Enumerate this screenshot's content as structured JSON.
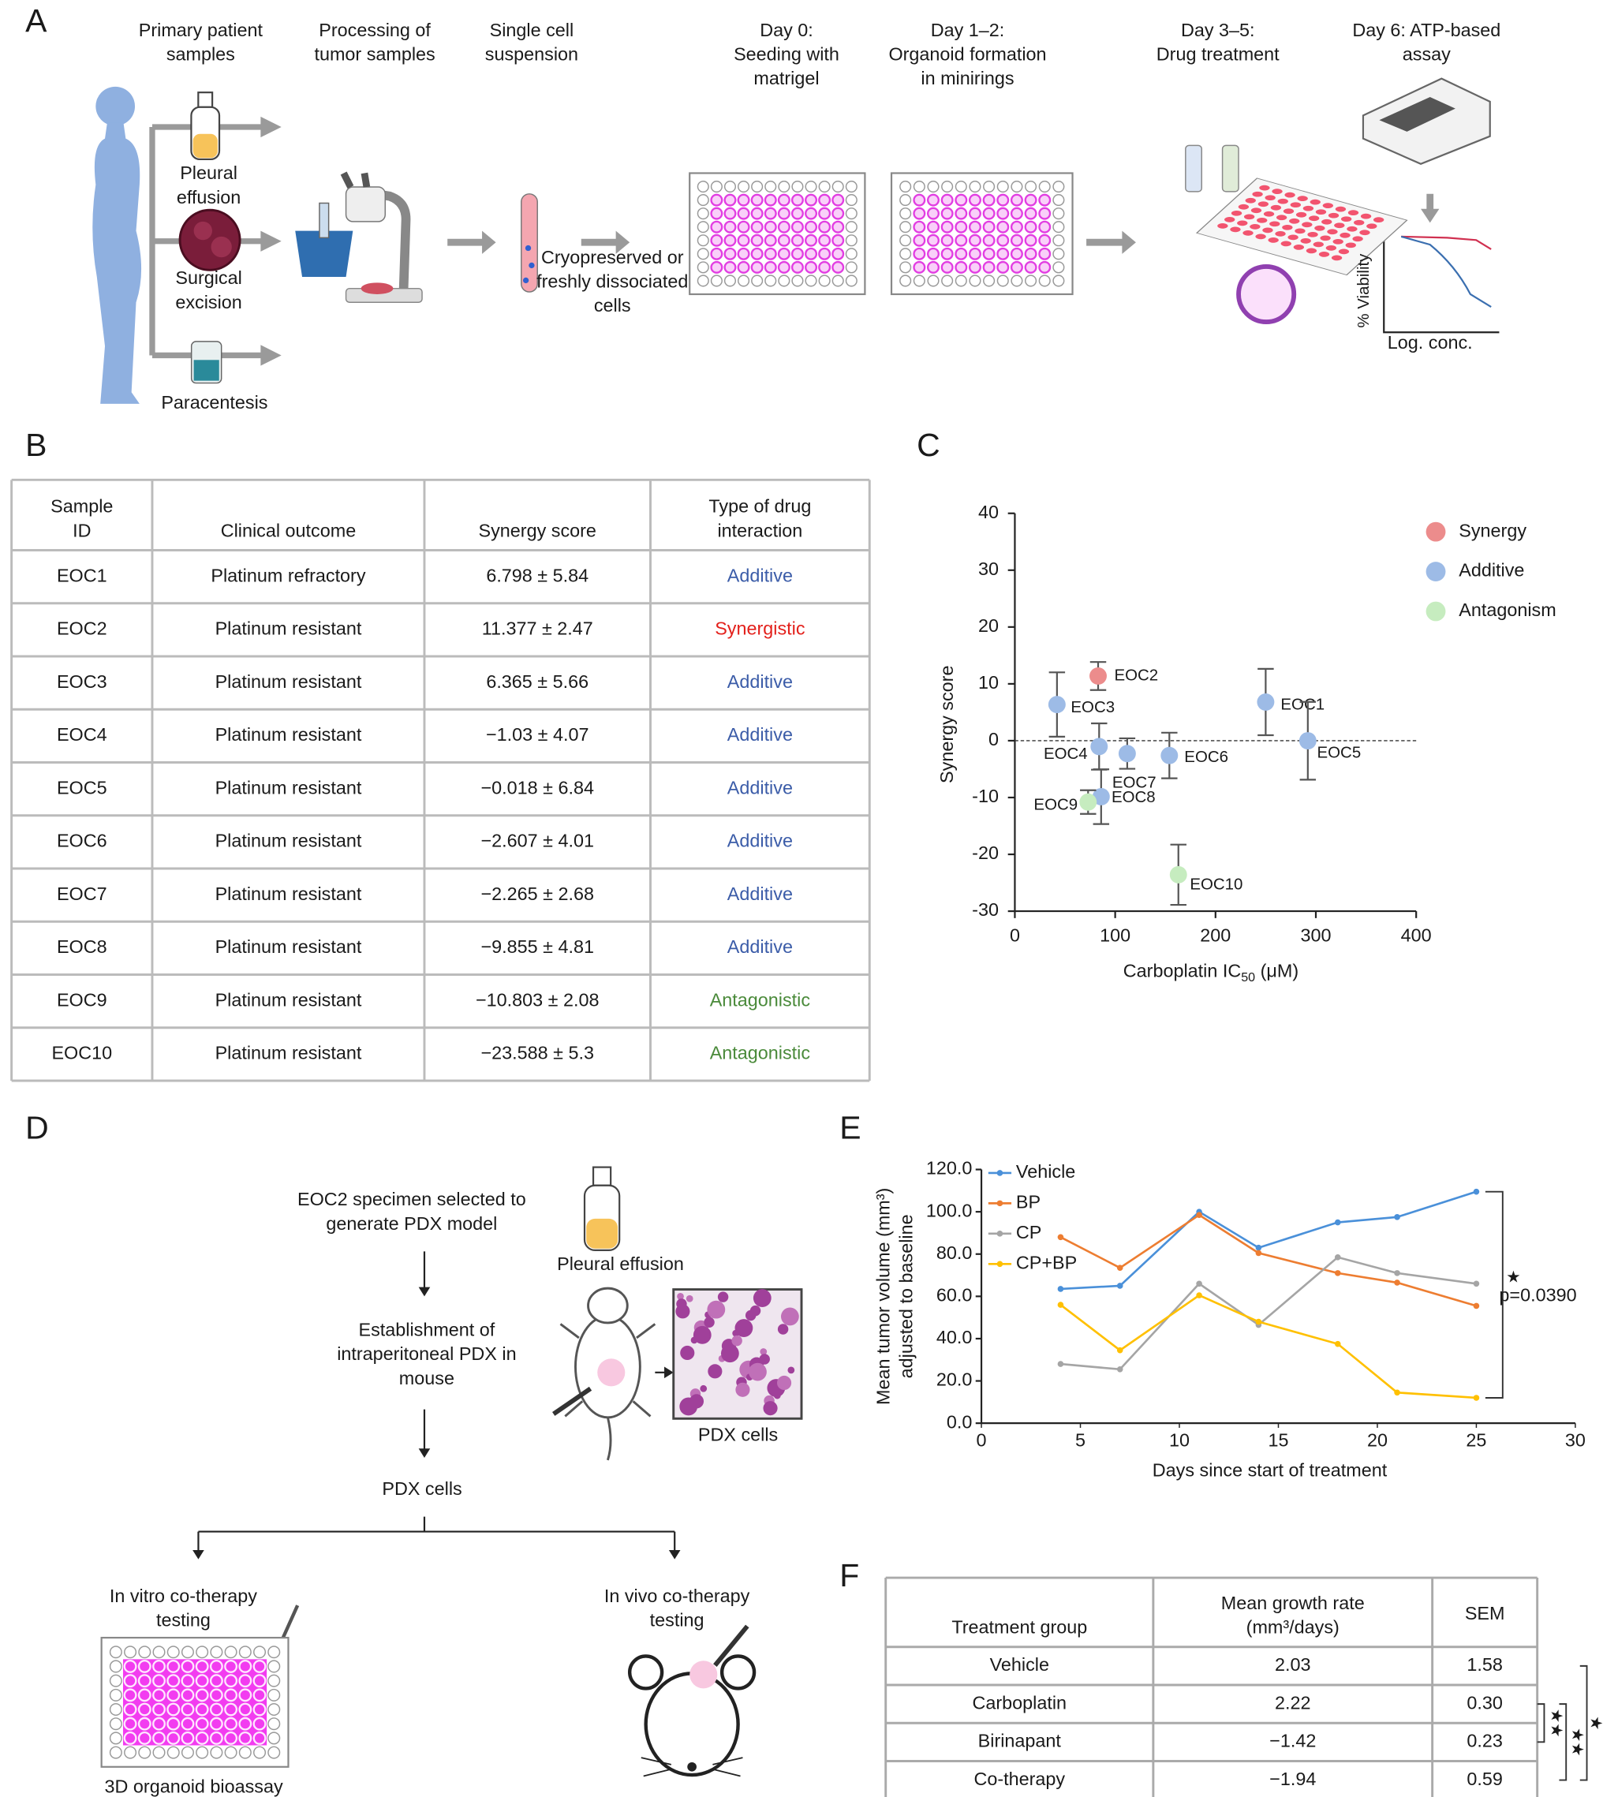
{
  "panels": [
    "A",
    "B",
    "C",
    "D",
    "E",
    "F"
  ],
  "panel_a": {
    "steps": [
      [
        "Primary patient",
        "samples"
      ],
      [
        "Processing of",
        "tumor samples"
      ],
      [
        "Single cell",
        "suspension"
      ],
      [
        "Day 0:",
        "Seeding with",
        "matrigel"
      ],
      [
        "Day 1–2:",
        "Organoid formation",
        "in minirings"
      ],
      [
        "Day 3–5:",
        "Drug treatment"
      ],
      [
        "Day 6: ATP-based",
        "assay"
      ]
    ],
    "sources": [
      [
        "Pleural",
        "effusion"
      ],
      [
        "Surgical",
        "excision"
      ],
      [
        "Paracentesis"
      ]
    ],
    "cells": [
      "Cryopreserved or",
      "freshly dissociated",
      "cells"
    ],
    "assay_ylabel": "% Viability",
    "assay_xlabel": "Log. conc."
  },
  "table_b": {
    "header": [
      [
        "Sample",
        "ID"
      ],
      [
        "Clinical outcome"
      ],
      [
        "Synergy score"
      ],
      [
        "Type of drug",
        "interaction"
      ]
    ],
    "rows": [
      [
        "EOC1",
        "Platinum refractory",
        "6.798 ± 5.84",
        "Additive"
      ],
      [
        "EOC2",
        "Platinum resistant",
        "11.377 ± 2.47",
        "Synergistic"
      ],
      [
        "EOC3",
        "Platinum resistant",
        "6.365 ± 5.66",
        "Additive"
      ],
      [
        "EOC4",
        "Platinum resistant",
        "−1.03 ± 4.07",
        "Additive"
      ],
      [
        "EOC5",
        "Platinum resistant",
        "−0.018 ± 6.84",
        "Additive"
      ],
      [
        "EOC6",
        "Platinum resistant",
        "−2.607 ± 4.01",
        "Additive"
      ],
      [
        "EOC7",
        "Platinum resistant",
        "−2.265 ± 2.68",
        "Additive"
      ],
      [
        "EOC8",
        "Platinum resistant",
        "−9.855 ± 4.81",
        "Additive"
      ],
      [
        "EOC9",
        "Platinum resistant",
        "−10.803 ± 2.08",
        "Antagonistic"
      ],
      [
        "EOC10",
        "Platinum resistant",
        "−23.588 ± 5.3",
        "Antagonistic"
      ]
    ],
    "type_colors": [
      "#3b5ca8",
      "#e3201b",
      "#3b5ca8",
      "#3b5ca8",
      "#3b5ca8",
      "#3b5ca8",
      "#3b5ca8",
      "#3b5ca8",
      "#4a8a3a",
      "#4a8a3a"
    ]
  },
  "chart_data": [
    {
      "type": "scatter",
      "ylabel": "Synergy score",
      "xlabel": "Carboplatin IC",
      "xlabel_sub": "50",
      "xlabel_unit": " (μM)",
      "xlim": [
        0,
        400
      ],
      "xticks": [
        0,
        100,
        200,
        300,
        400
      ],
      "ylim": [
        -30,
        40
      ],
      "yticks": [
        -30,
        -20,
        -10,
        0,
        10,
        20,
        30,
        40
      ],
      "hline": 0,
      "legend": "right",
      "series": [
        {
          "name": "Synergy",
          "color": "#ec8c8c",
          "point_labels": [
            "EOC2"
          ],
          "x": [
            83
          ],
          "values": [
            11.377
          ],
          "errors": [
            2.47
          ]
        },
        {
          "name": "Additive",
          "color": "#9dbbe6",
          "point_labels": [
            "EOC1",
            "EOC3",
            "EOC4",
            "EOC5",
            "EOC6",
            "EOC7",
            "EOC8"
          ],
          "x": [
            250,
            42,
            84,
            292,
            154,
            112,
            86
          ],
          "values": [
            6.798,
            6.365,
            -1.03,
            -0.018,
            -2.607,
            -2.265,
            -9.855
          ],
          "errors": [
            5.84,
            5.66,
            4.07,
            6.84,
            4.01,
            2.68,
            4.81
          ]
        },
        {
          "name": "Antagonism",
          "color": "#c6ecbf",
          "point_labels": [
            "EOC9",
            "EOC10"
          ],
          "x": [
            73,
            163
          ],
          "values": [
            -10.803,
            -23.588
          ],
          "errors": [
            2.08,
            5.3
          ]
        }
      ]
    },
    {
      "type": "line",
      "xlabel": "Days since start of treatment",
      "ylabel": [
        "Mean tumor volume (mm³)",
        "adjusted to baseline"
      ],
      "x": [
        4,
        7,
        11,
        14,
        18,
        21,
        25
      ],
      "xlim": [
        0,
        30
      ],
      "xticks": [
        0,
        5,
        10,
        15,
        20,
        25,
        30
      ],
      "ylim": [
        0,
        120
      ],
      "yticks": [
        {
          "value": 0,
          "label": "0.0"
        },
        {
          "value": 20,
          "label": "20.0"
        },
        {
          "value": 40,
          "label": "40.0"
        },
        {
          "value": 60,
          "label": "60.0"
        },
        {
          "value": 80,
          "label": "80.0"
        },
        {
          "value": 100,
          "label": "100.0"
        },
        {
          "value": 120,
          "label": "120.0"
        }
      ],
      "legend": "top-left",
      "series": [
        {
          "name": "Vehicle",
          "color": "#4a90d9",
          "values": [
            63.5,
            65,
            100,
            83,
            95,
            97.5,
            109.5
          ]
        },
        {
          "name": "BP",
          "color": "#ed7d31",
          "values": [
            88,
            73.5,
            98.5,
            80.5,
            71,
            66.5,
            55.5
          ]
        },
        {
          "name": "CP",
          "color": "#a5a5a5",
          "values": [
            28,
            25.5,
            66,
            46.5,
            78.5,
            71,
            66
          ]
        },
        {
          "name": "CP+BP",
          "color": "#ffc000",
          "values": [
            56,
            34.5,
            60.5,
            48,
            37.5,
            14.5,
            12
          ]
        }
      ],
      "annotation": {
        "marker": "★",
        "text": "p=0.0390"
      }
    }
  ],
  "panel_d": {
    "specimen": [
      "EOC2 specimen selected to",
      "generate PDX model"
    ],
    "source": "Pleural effusion",
    "establishment": [
      "Establishment of",
      "intraperitoneal PDX in",
      "mouse"
    ],
    "image_label": "PDX cells",
    "cells": "PDX cells",
    "in_vitro": [
      "In vitro co-therapy",
      "testing"
    ],
    "in_vivo": [
      "In vivo co-therapy",
      "testing"
    ],
    "bioassay": "3D organoid bioassay"
  },
  "table_f": {
    "header": [
      [
        "Treatment group"
      ],
      [
        "Mean growth rate",
        "(mm³/days)"
      ],
      [
        "SEM"
      ]
    ],
    "rows": [
      [
        "Vehicle",
        "2.03",
        "1.58"
      ],
      [
        "Carboplatin",
        "2.22",
        "0.30"
      ],
      [
        "Birinapant",
        "−1.42",
        "0.23"
      ],
      [
        "Co-therapy",
        "−1.94",
        "0.59"
      ]
    ],
    "significance": [
      "★★",
      "★★",
      "★"
    ]
  }
}
